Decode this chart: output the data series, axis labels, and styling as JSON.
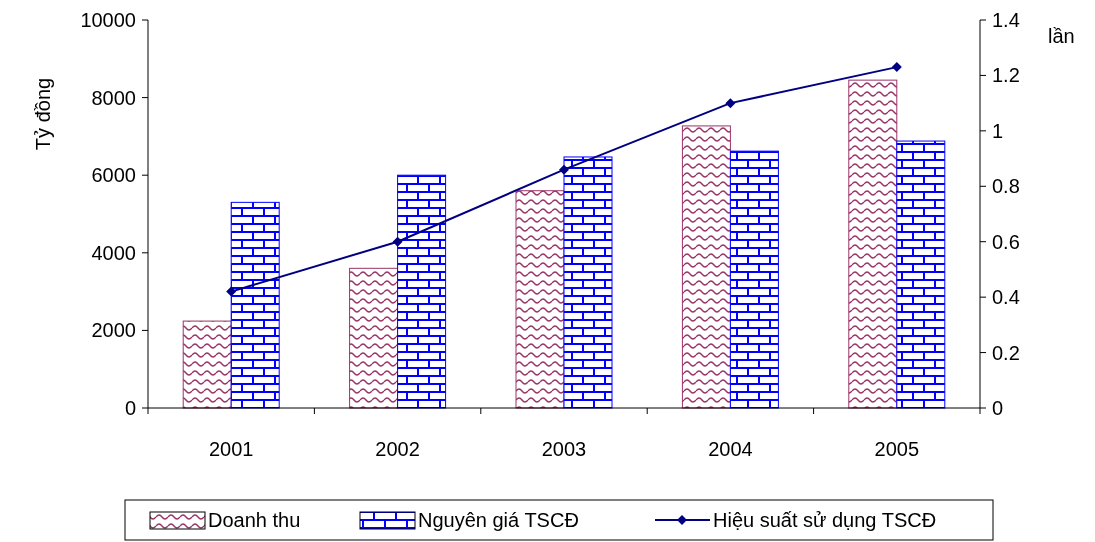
{
  "chart_data": {
    "type": "bar",
    "categories": [
      "2001",
      "2002",
      "2003",
      "2004",
      "2005"
    ],
    "ylabel": "Tỷ đồng",
    "y2label": "lần",
    "series": [
      {
        "name": "Doanh thu",
        "color": "#993366",
        "values": [
          2240,
          3600,
          5600,
          7270,
          8450
        ]
      },
      {
        "name": "Nguyên giá TSCĐ",
        "color": "#0000ff",
        "values": [
          5300,
          6000,
          6470,
          6620,
          6880
        ]
      },
      {
        "name": "Hiệu suất sử dụng TSCĐ",
        "type": "line",
        "axis": "y2",
        "color": "#000080",
        "values": [
          0.42,
          0.6,
          0.86,
          1.1,
          1.23
        ],
        "marker": "diamond"
      }
    ],
    "ylim": [
      0,
      10000
    ],
    "yticks": [
      0,
      2000,
      4000,
      6000,
      8000,
      10000
    ],
    "y2lim": [
      0,
      1.4
    ],
    "y2ticks": [
      0,
      0.2,
      0.4,
      0.6,
      0.8,
      1,
      1.2,
      1.4
    ],
    "legend": "bottom",
    "grid": false
  }
}
